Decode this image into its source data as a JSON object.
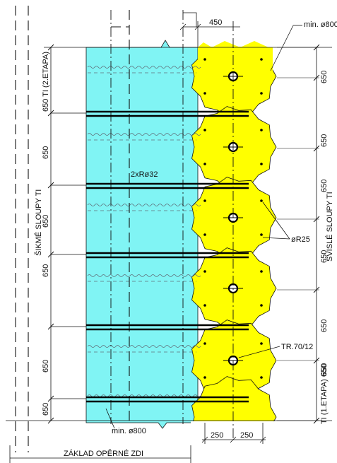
{
  "labels": {
    "min800_top": "min. ø800",
    "min800_bottom": "min. ø800",
    "anchor": "2xRø32",
    "r25": "øR25",
    "tr": "TR.70/12",
    "foundation": "ZÁKLAD OPĚRNÉ ZDI",
    "left_top": "650 TI (2.ETAPA)",
    "left_group": "ŠIKMÉ SLOUPY TI",
    "right_bottom": "TI (1.ETAPA) 650",
    "right_group": "SVISLÉ SLOUPY TI"
  },
  "dims": {
    "top": "450",
    "bottom_left": "250",
    "bottom_right": "250",
    "left": [
      "650 TI (2.ETAPA)",
      "650",
      "650",
      "650",
      "650",
      "650"
    ],
    "right": [
      "650",
      "650",
      "650",
      "650",
      "650",
      "650"
    ]
  },
  "colors": {
    "cyan_zone": "#80f4f4",
    "yellow_columns": "#ffff00"
  }
}
